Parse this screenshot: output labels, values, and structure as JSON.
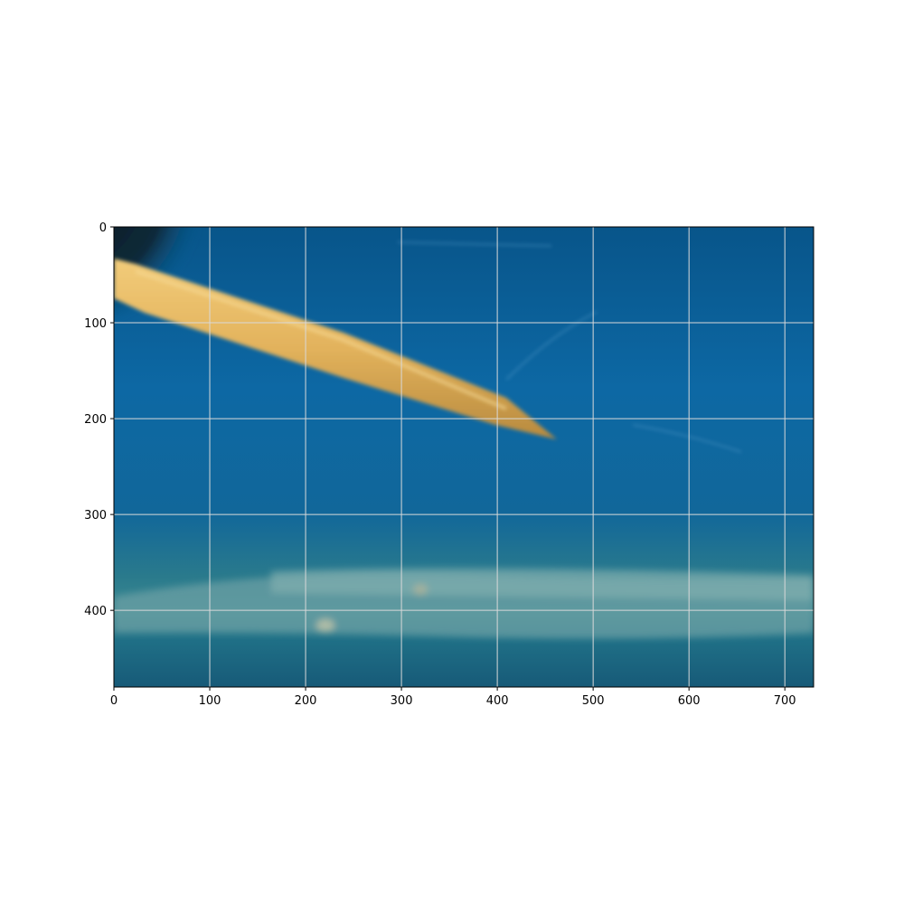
{
  "image": {
    "description_free": true,
    "width_units": 730,
    "height_units": 480,
    "colors": {
      "water_top": "#0a5e96",
      "water_mid": "#0d6aa6",
      "water_bottom": "#1a5f7f",
      "sediment": "#8fb3b0",
      "stick": "#e6b865",
      "stick_dark": "#c99744",
      "corner_shadow": "#0e1a22",
      "grid": "#d9d9d9"
    }
  },
  "axes": {
    "x_ticks": [
      0,
      100,
      200,
      300,
      400,
      500,
      600,
      700
    ],
    "y_ticks": [
      0,
      100,
      200,
      300,
      400
    ],
    "xlim": [
      0,
      730
    ],
    "ylim": [
      480,
      0
    ],
    "grid": true
  }
}
